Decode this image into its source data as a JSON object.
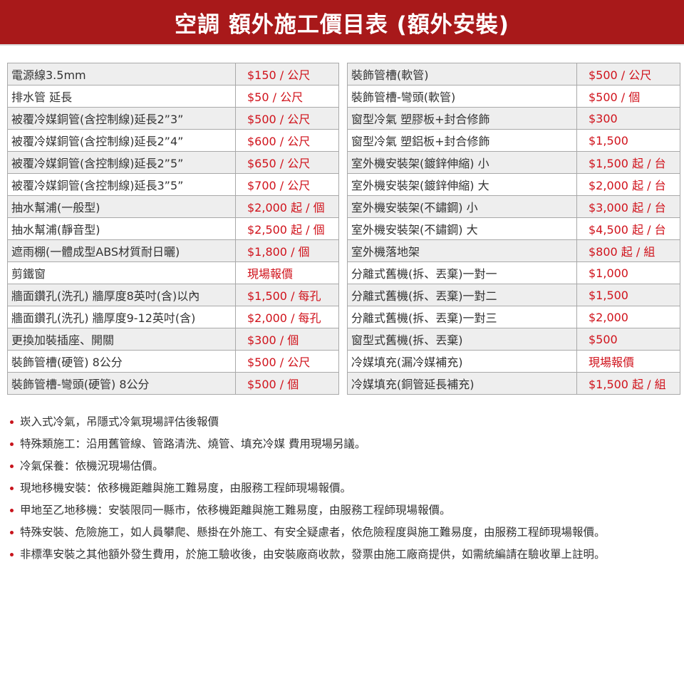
{
  "header": {
    "title": "空調 額外施工價目表 (額外安裝)"
  },
  "colors": {
    "brand": "#a8191a",
    "price": "#d0121b",
    "row_alt": "#eeeeee"
  },
  "left_table": [
    {
      "item": "電源線3.5mm",
      "price": "$150 / 公尺"
    },
    {
      "item": "排水管 延長",
      "price": "$50 / 公尺"
    },
    {
      "item": "被覆冷媒銅管(含控制線)延長2”3”",
      "price": "$500 / 公尺"
    },
    {
      "item": "被覆冷媒銅管(含控制線)延長2”4”",
      "price": "$600 / 公尺"
    },
    {
      "item": "被覆冷媒銅管(含控制線)延長2”5”",
      "price": "$650 / 公尺"
    },
    {
      "item": "被覆冷媒銅管(含控制線)延長3”5”",
      "price": "$700 / 公尺"
    },
    {
      "item": "抽水幫浦(一般型)",
      "price": "$2,000 起 / 個"
    },
    {
      "item": "抽水幫浦(靜音型)",
      "price": "$2,500 起 / 個"
    },
    {
      "item": "遮雨棚(一體成型ABS材質耐日曬)",
      "price": "$1,800 / 個"
    },
    {
      "item": "剪鐵窗",
      "price": "現場報價"
    },
    {
      "item": "牆面鑽孔(洗孔) 牆厚度8英吋(含)以內",
      "price": "$1,500 / 每孔"
    },
    {
      "item": "牆面鑽孔(洗孔) 牆厚度9-12英吋(含)",
      "price": "$2,000 / 每孔"
    },
    {
      "item": "更換加裝插座、開關",
      "price": "$300 / 個"
    },
    {
      "item": "裝飾管槽(硬管) 8公分",
      "price": "$500 / 公尺"
    },
    {
      "item": "裝飾管槽-彎頭(硬管) 8公分",
      "price": "$500 / 個"
    }
  ],
  "right_table": [
    {
      "item": "裝飾管槽(軟管)",
      "price": "$500 / 公尺"
    },
    {
      "item": "裝飾管槽-彎頭(軟管)",
      "price": "$500 / 個"
    },
    {
      "item": "窗型冷氣 塑膠板+封合修飾",
      "price": "$300"
    },
    {
      "item": "窗型冷氣 塑鋁板+封合修飾",
      "price": "$1,500"
    },
    {
      "item": "室外機安裝架(鍍鋅伸縮) 小",
      "price": "$1,500 起 / 台"
    },
    {
      "item": "室外機安裝架(鍍鋅伸縮) 大",
      "price": "$2,000 起 / 台"
    },
    {
      "item": "室外機安裝架(不鏽鋼) 小",
      "price": "$3,000 起 / 台"
    },
    {
      "item": "室外機安裝架(不鏽鋼) 大",
      "price": "$4,500 起 / 台"
    },
    {
      "item": "室外機落地架",
      "price": "$800 起 / 組"
    },
    {
      "item": "分離式舊機(拆、丟棄)一對一",
      "price": "$1,000"
    },
    {
      "item": "分離式舊機(拆、丟棄)一對二",
      "price": "$1,500"
    },
    {
      "item": "分離式舊機(拆、丟棄)一對三",
      "price": "$2,000"
    },
    {
      "item": "窗型式舊機(拆、丟棄)",
      "price": "$500"
    },
    {
      "item": "冷媒填充(漏冷媒補充)",
      "price": "現場報價"
    },
    {
      "item": "冷媒填充(銅管延長補充)",
      "price": "$1,500 起 / 組"
    }
  ],
  "notes": [
    "崁入式冷氣，吊隱式冷氣現場評估後報價",
    "特殊類施工：沿用舊管線、管路清洗、燒管、填充冷媒 費用現場另議。",
    "冷氣保養：依機況現場估價。",
    "現地移機安裝：依移機距離與施工難易度，由服務工程師現場報價。",
    "甲地至乙地移機：安裝限同一縣市，依移機距離與施工難易度，由服務工程師現場報價。",
    "特殊安裝、危險施工，如人員攀爬、懸掛在外施工、有安全疑慮者，依危險程度與施工難易度，由服務工程師現場報價。",
    "非標準安裝之其他額外發生費用，於施工驗收後，由安裝廠商收款，發票由施工廠商提供，如需統編請在驗收單上註明。"
  ]
}
